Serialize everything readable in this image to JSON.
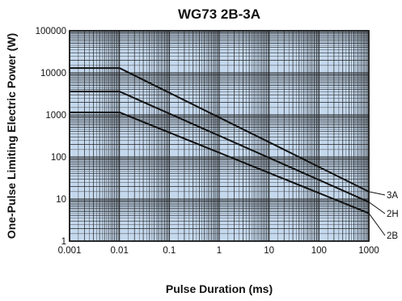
{
  "chart_data": {
    "type": "line",
    "title": "WG73 2B-3A",
    "xlabel": "Pulse Duration (ms)",
    "ylabel": "One-Pulse Limiting Electric Power (W)",
    "x_scale": "log",
    "y_scale": "log",
    "xlim": [
      0.001,
      1000
    ],
    "ylim": [
      1,
      100000
    ],
    "grid": true,
    "background_color": "#c5d9ee",
    "line_color": "#111111",
    "x_ticks": [
      "0.001",
      "0.01",
      "0.1",
      "1",
      "10",
      "100",
      "1000"
    ],
    "y_ticks": [
      "1",
      "10",
      "100",
      "1000",
      "10000",
      "100000"
    ],
    "series": [
      {
        "name": "3A",
        "x": [
          0.001,
          0.01,
          1000
        ],
        "y": [
          13000,
          13000,
          15
        ]
      },
      {
        "name": "2H",
        "x": [
          0.001,
          0.01,
          1000
        ],
        "y": [
          3600,
          3600,
          8.5
        ]
      },
      {
        "name": "2B",
        "x": [
          0.001,
          0.01,
          1000
        ],
        "y": [
          1150,
          1150,
          4.6
        ]
      }
    ]
  }
}
